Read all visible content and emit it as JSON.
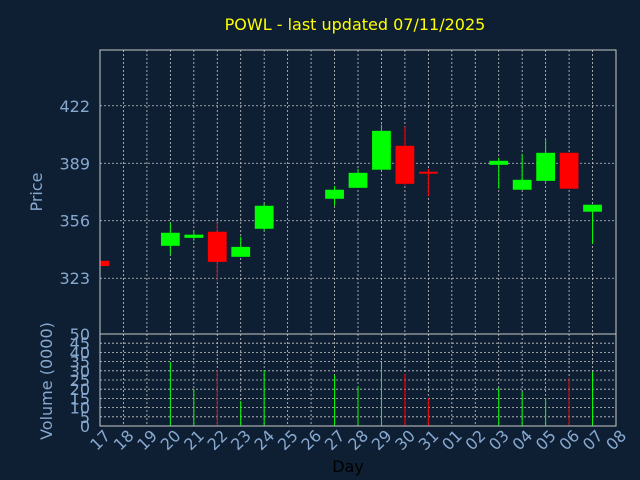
{
  "chart_data": {
    "type": "candlestick",
    "title": "POWL - last updated 07/11/2025",
    "xlabel": "Day",
    "ylabel": "Price",
    "y2label": "Volume (0000)",
    "categories": [
      "17",
      "18",
      "19",
      "20",
      "21",
      "22",
      "23",
      "24",
      "25",
      "26",
      "27",
      "28",
      "29",
      "30",
      "31",
      "01",
      "02",
      "03",
      "04",
      "05",
      "06",
      "07",
      "08"
    ],
    "open": [
      333,
      null,
      null,
      341.6,
      346.2,
      349.7,
      335.3,
      351.4,
      null,
      null,
      368.6,
      374.9,
      385.3,
      399,
      384.1,
      null,
      null,
      388.1,
      373.8,
      378.9,
      395,
      361.2,
      null
    ],
    "high": [
      333,
      null,
      null,
      354.8,
      350.2,
      354.8,
      346.8,
      365.7,
      null,
      null,
      376,
      385.8,
      411.1,
      410,
      385.8,
      null,
      null,
      392.1,
      394.4,
      402.5,
      395,
      365.2,
      null
    ],
    "low": [
      330,
      null,
      null,
      336.5,
      344.5,
      321.5,
      335.3,
      350.2,
      null,
      null,
      364.6,
      374.9,
      384.7,
      376.6,
      370.3,
      null,
      null,
      374.4,
      373.8,
      378.4,
      374.4,
      342.8,
      null
    ],
    "close": [
      330,
      null,
      null,
      349.1,
      348,
      332.4,
      341,
      364.6,
      null,
      null,
      373.8,
      383.5,
      407.6,
      377.2,
      383,
      null,
      null,
      390.4,
      379.5,
      395,
      374.4,
      365.2,
      null
    ],
    "volume": [
      null,
      null,
      null,
      34.8,
      20.1,
      30.4,
      13.6,
      30.4,
      null,
      null,
      27.7,
      21.7,
      33.7,
      28.3,
      15.2,
      null,
      null,
      20.7,
      18.5,
      15.2,
      26.1,
      29.3,
      null
    ],
    "up_color": "#00ff00",
    "down_color": "#ff0000",
    "ylim": [
      291,
      454
    ],
    "yticks": [
      323,
      356,
      389,
      422
    ],
    "y2lim": [
      0,
      50
    ],
    "y2ticks": [
      0,
      5,
      10,
      15,
      20,
      25,
      30,
      35,
      40,
      45,
      50
    ],
    "grid": true
  }
}
